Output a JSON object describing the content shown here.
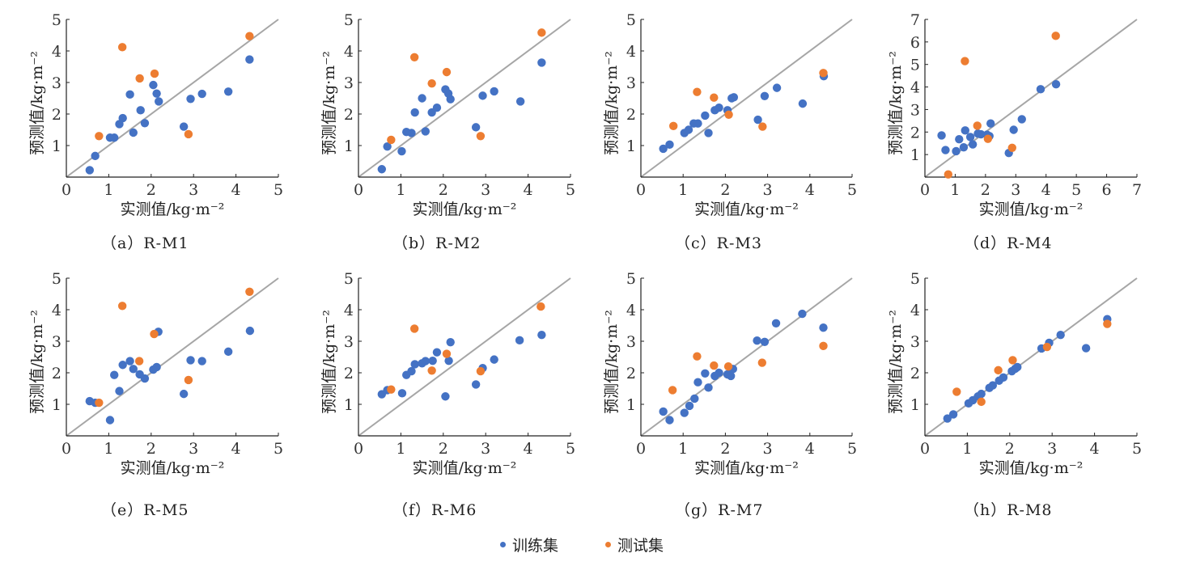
{
  "colors": {
    "train": "#4472C4",
    "test": "#ED7D31",
    "identity_line": "#A6A6A6",
    "axis": "#222222"
  },
  "legend": [
    {
      "key": "train",
      "label": "训练集"
    },
    {
      "key": "test",
      "label": "测试集"
    }
  ],
  "chart_data": [
    {
      "type": "scatter",
      "id": "a",
      "caption": "（a）R-M1",
      "xlabel": "实测值/kg·m⁻²",
      "ylabel": "预测值/kg·m⁻²",
      "xlim": [
        0,
        5
      ],
      "ylim": [
        0,
        5
      ],
      "xticks": [
        0,
        1,
        2,
        3,
        4,
        5
      ],
      "yticks": [
        1,
        2,
        3,
        4,
        5
      ],
      "identity_line": true,
      "grid": false,
      "series": [
        {
          "name": "训练集",
          "key": "train",
          "points": [
            [
              0.55,
              0.22
            ],
            [
              0.68,
              0.67
            ],
            [
              1.03,
              1.25
            ],
            [
              1.13,
              1.25
            ],
            [
              1.25,
              1.68
            ],
            [
              1.33,
              1.87
            ],
            [
              1.5,
              2.62
            ],
            [
              1.58,
              1.41
            ],
            [
              1.75,
              2.12
            ],
            [
              1.85,
              1.71
            ],
            [
              2.05,
              2.92
            ],
            [
              2.13,
              2.65
            ],
            [
              2.18,
              2.4
            ],
            [
              2.77,
              1.6
            ],
            [
              2.93,
              2.48
            ],
            [
              3.2,
              2.64
            ],
            [
              3.82,
              2.71
            ],
            [
              4.32,
              3.73
            ]
          ]
        },
        {
          "name": "测试集",
          "key": "test",
          "points": [
            [
              0.77,
              1.3
            ],
            [
              1.32,
              4.12
            ],
            [
              1.73,
              3.13
            ],
            [
              2.08,
              3.28
            ],
            [
              2.88,
              1.36
            ],
            [
              4.32,
              4.47
            ]
          ]
        }
      ]
    },
    {
      "type": "scatter",
      "id": "b",
      "caption": "（b）R-M2",
      "xlabel": "实测值/kg·m⁻²",
      "ylabel": "预测值/kg·m⁻²",
      "xlim": [
        0,
        5
      ],
      "ylim": [
        0,
        5
      ],
      "xticks": [
        0,
        1,
        2,
        3,
        4,
        5
      ],
      "yticks": [
        1,
        2,
        3,
        4,
        5
      ],
      "identity_line": true,
      "grid": false,
      "series": [
        {
          "name": "训练集",
          "key": "train",
          "points": [
            [
              0.55,
              0.25
            ],
            [
              0.68,
              0.97
            ],
            [
              1.02,
              0.82
            ],
            [
              1.13,
              1.43
            ],
            [
              1.25,
              1.4
            ],
            [
              1.33,
              2.05
            ],
            [
              1.5,
              2.5
            ],
            [
              1.58,
              1.45
            ],
            [
              1.73,
              2.05
            ],
            [
              1.85,
              2.2
            ],
            [
              2.05,
              2.78
            ],
            [
              2.12,
              2.65
            ],
            [
              2.17,
              2.47
            ],
            [
              2.77,
              1.58
            ],
            [
              2.93,
              2.58
            ],
            [
              3.2,
              2.72
            ],
            [
              3.82,
              2.4
            ],
            [
              4.32,
              3.63
            ]
          ]
        },
        {
          "name": "测试集",
          "key": "test",
          "points": [
            [
              0.77,
              1.18
            ],
            [
              1.32,
              3.8
            ],
            [
              1.73,
              2.97
            ],
            [
              2.08,
              3.33
            ],
            [
              2.88,
              1.3
            ],
            [
              4.32,
              4.58
            ]
          ]
        }
      ]
    },
    {
      "type": "scatter",
      "id": "c",
      "caption": "（c）R-M3",
      "xlabel": "实测值/kg·m⁻²",
      "ylabel": "预测值/kg·m⁻²",
      "xlim": [
        0,
        5
      ],
      "ylim": [
        0,
        5
      ],
      "xticks": [
        0,
        1,
        2,
        3,
        4,
        5
      ],
      "yticks": [
        1,
        2,
        3,
        4,
        5
      ],
      "identity_line": true,
      "grid": false,
      "series": [
        {
          "name": "训练集",
          "key": "train",
          "points": [
            [
              0.53,
              0.9
            ],
            [
              0.68,
              1.03
            ],
            [
              1.03,
              1.4
            ],
            [
              1.13,
              1.5
            ],
            [
              1.25,
              1.7
            ],
            [
              1.35,
              1.7
            ],
            [
              1.52,
              1.95
            ],
            [
              1.6,
              1.4
            ],
            [
              1.75,
              2.12
            ],
            [
              1.85,
              2.2
            ],
            [
              2.05,
              2.12
            ],
            [
              2.15,
              2.5
            ],
            [
              2.2,
              2.53
            ],
            [
              2.77,
              1.82
            ],
            [
              2.93,
              2.57
            ],
            [
              3.22,
              2.83
            ],
            [
              3.83,
              2.33
            ],
            [
              4.33,
              3.2
            ]
          ]
        },
        {
          "name": "测试集",
          "key": "test",
          "points": [
            [
              0.77,
              1.62
            ],
            [
              1.33,
              2.7
            ],
            [
              1.73,
              2.52
            ],
            [
              2.08,
              1.98
            ],
            [
              2.88,
              1.6
            ],
            [
              4.32,
              3.3
            ]
          ]
        }
      ]
    },
    {
      "type": "scatter",
      "id": "d",
      "caption": "（d）R-M4",
      "xlabel": "实测值/kg·m⁻²",
      "ylabel": "预测值/kg·m⁻²",
      "xlim": [
        0,
        7
      ],
      "ylim": [
        0,
        7
      ],
      "xticks": [
        0,
        1,
        2,
        3,
        4,
        5,
        6,
        7
      ],
      "yticks": [
        1,
        2,
        3,
        4,
        5,
        6,
        7
      ],
      "identity_line": true,
      "grid": false,
      "series": [
        {
          "name": "训练集",
          "key": "train",
          "points": [
            [
              0.55,
              1.85
            ],
            [
              0.68,
              1.2
            ],
            [
              1.03,
              1.15
            ],
            [
              1.13,
              1.68
            ],
            [
              1.28,
              1.32
            ],
            [
              1.33,
              2.07
            ],
            [
              1.5,
              1.78
            ],
            [
              1.58,
              1.45
            ],
            [
              1.75,
              1.93
            ],
            [
              1.85,
              1.9
            ],
            [
              2.05,
              1.88
            ],
            [
              2.13,
              1.82
            ],
            [
              2.17,
              2.38
            ],
            [
              2.77,
              1.07
            ],
            [
              2.93,
              2.1
            ],
            [
              3.2,
              2.57
            ],
            [
              3.82,
              3.9
            ],
            [
              4.33,
              4.12
            ]
          ]
        },
        {
          "name": "测试集",
          "key": "test",
          "points": [
            [
              0.77,
              0.12
            ],
            [
              1.32,
              5.15
            ],
            [
              1.73,
              2.28
            ],
            [
              2.08,
              1.7
            ],
            [
              2.88,
              1.3
            ],
            [
              4.32,
              6.27
            ]
          ]
        }
      ]
    },
    {
      "type": "scatter",
      "id": "e",
      "caption": "（e）R-M5",
      "xlabel": "实测值/kg·m⁻²",
      "ylabel": "预测值/kg·m⁻²",
      "xlim": [
        0,
        5
      ],
      "ylim": [
        0,
        5
      ],
      "xticks": [
        0,
        1,
        2,
        3,
        4,
        5
      ],
      "yticks": [
        1,
        2,
        3,
        4,
        5
      ],
      "identity_line": true,
      "grid": false,
      "series": [
        {
          "name": "训练集",
          "key": "train",
          "points": [
            [
              0.55,
              1.1
            ],
            [
              0.68,
              1.05
            ],
            [
              1.03,
              0.5
            ],
            [
              1.13,
              1.93
            ],
            [
              1.25,
              1.42
            ],
            [
              1.33,
              2.25
            ],
            [
              1.5,
              2.37
            ],
            [
              1.58,
              2.12
            ],
            [
              1.73,
              1.95
            ],
            [
              1.85,
              1.82
            ],
            [
              2.05,
              2.1
            ],
            [
              2.13,
              2.18
            ],
            [
              2.17,
              3.3
            ],
            [
              2.77,
              1.33
            ],
            [
              2.93,
              2.4
            ],
            [
              3.2,
              2.37
            ],
            [
              3.82,
              2.67
            ],
            [
              4.33,
              3.33
            ]
          ]
        },
        {
          "name": "测试集",
          "key": "test",
          "points": [
            [
              0.77,
              1.05
            ],
            [
              1.32,
              4.12
            ],
            [
              1.72,
              2.37
            ],
            [
              2.07,
              3.23
            ],
            [
              2.88,
              1.77
            ],
            [
              4.32,
              4.57
            ]
          ]
        }
      ]
    },
    {
      "type": "scatter",
      "id": "f",
      "caption": "（f）R-M6",
      "xlabel": "实测值/kg·m⁻²",
      "ylabel": "预测值/kg·m⁻²",
      "xlim": [
        0,
        5
      ],
      "ylim": [
        0,
        5
      ],
      "xticks": [
        0,
        1,
        2,
        3,
        4,
        5
      ],
      "yticks": [
        1,
        2,
        3,
        4,
        5
      ],
      "identity_line": true,
      "grid": false,
      "series": [
        {
          "name": "训练集",
          "key": "train",
          "points": [
            [
              0.55,
              1.32
            ],
            [
              0.68,
              1.45
            ],
            [
              1.03,
              1.35
            ],
            [
              1.13,
              1.93
            ],
            [
              1.25,
              2.05
            ],
            [
              1.33,
              2.27
            ],
            [
              1.5,
              2.3
            ],
            [
              1.58,
              2.37
            ],
            [
              1.75,
              2.38
            ],
            [
              1.85,
              2.65
            ],
            [
              2.05,
              1.25
            ],
            [
              2.13,
              2.38
            ],
            [
              2.17,
              2.97
            ],
            [
              2.77,
              1.63
            ],
            [
              2.93,
              2.15
            ],
            [
              3.2,
              2.42
            ],
            [
              3.8,
              3.03
            ],
            [
              4.32,
              3.2
            ]
          ]
        },
        {
          "name": "测试集",
          "key": "test",
          "points": [
            [
              0.77,
              1.47
            ],
            [
              1.32,
              3.4
            ],
            [
              1.73,
              2.07
            ],
            [
              2.08,
              2.6
            ],
            [
              2.88,
              2.05
            ],
            [
              4.3,
              4.1
            ]
          ]
        }
      ]
    },
    {
      "type": "scatter",
      "id": "g",
      "caption": "（g）R-M7",
      "xlabel": "实测值/kg·m⁻²",
      "ylabel": "预测值/kg·m⁻²",
      "xlim": [
        0,
        5
      ],
      "ylim": [
        0,
        5
      ],
      "xticks": [
        0,
        1,
        2,
        3,
        4,
        5
      ],
      "yticks": [
        1,
        2,
        3,
        4,
        5
      ],
      "identity_line": true,
      "grid": false,
      "series": [
        {
          "name": "训练集",
          "key": "train",
          "points": [
            [
              0.53,
              0.77
            ],
            [
              0.68,
              0.5
            ],
            [
              1.03,
              0.73
            ],
            [
              1.15,
              0.95
            ],
            [
              1.27,
              1.18
            ],
            [
              1.35,
              1.7
            ],
            [
              1.52,
              1.98
            ],
            [
              1.6,
              1.53
            ],
            [
              1.75,
              1.9
            ],
            [
              1.85,
              2.0
            ],
            [
              2.05,
              1.95
            ],
            [
              2.13,
              1.9
            ],
            [
              2.18,
              2.12
            ],
            [
              2.75,
              3.02
            ],
            [
              2.93,
              2.98
            ],
            [
              3.2,
              3.57
            ],
            [
              3.82,
              3.87
            ],
            [
              4.32,
              3.43
            ]
          ]
        },
        {
          "name": "测试集",
          "key": "test",
          "points": [
            [
              0.75,
              1.45
            ],
            [
              1.33,
              2.52
            ],
            [
              1.73,
              2.23
            ],
            [
              2.07,
              2.2
            ],
            [
              2.87,
              2.32
            ],
            [
              4.32,
              2.85
            ]
          ]
        }
      ]
    },
    {
      "type": "scatter",
      "id": "h",
      "caption": "（h）R-M8",
      "xlabel": "实测值/kg·m⁻²",
      "ylabel": "预测值/kg·m⁻²",
      "xlim": [
        0,
        5
      ],
      "ylim": [
        0,
        5
      ],
      "xticks": [
        0,
        1,
        2,
        3,
        4,
        5
      ],
      "yticks": [
        1,
        2,
        3,
        4,
        5
      ],
      "identity_line": true,
      "grid": false,
      "series": [
        {
          "name": "训练集",
          "key": "train",
          "points": [
            [
              0.53,
              0.55
            ],
            [
              0.67,
              0.68
            ],
            [
              1.03,
              1.03
            ],
            [
              1.13,
              1.13
            ],
            [
              1.25,
              1.25
            ],
            [
              1.33,
              1.33
            ],
            [
              1.52,
              1.52
            ],
            [
              1.6,
              1.6
            ],
            [
              1.75,
              1.75
            ],
            [
              1.85,
              1.85
            ],
            [
              2.05,
              2.05
            ],
            [
              2.13,
              2.13
            ],
            [
              2.18,
              2.18
            ],
            [
              2.75,
              2.77
            ],
            [
              2.93,
              2.95
            ],
            [
              3.2,
              3.2
            ],
            [
              3.8,
              2.78
            ],
            [
              4.3,
              3.7
            ]
          ]
        },
        {
          "name": "测试集",
          "key": "test",
          "points": [
            [
              0.75,
              1.4
            ],
            [
              1.33,
              1.08
            ],
            [
              1.73,
              2.08
            ],
            [
              2.07,
              2.4
            ],
            [
              2.88,
              2.82
            ],
            [
              4.3,
              3.55
            ]
          ]
        }
      ]
    }
  ]
}
